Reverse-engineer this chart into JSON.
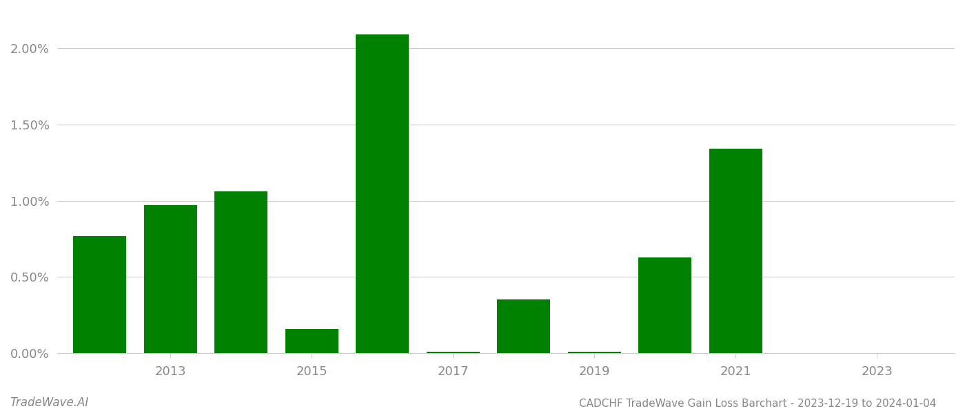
{
  "years": [
    2012,
    2013,
    2014,
    2015,
    2016,
    2017,
    2018,
    2019,
    2020,
    2021,
    2022,
    2023
  ],
  "values": [
    0.0077,
    0.0097,
    0.0106,
    0.0016,
    0.0209,
    0.0001,
    0.0035,
    0.0001,
    0.0063,
    0.0134,
    0.0,
    0.0
  ],
  "bar_color": "#008000",
  "title": "CADCHF TradeWave Gain Loss Barchart - 2023-12-19 to 2024-01-04",
  "watermark": "TradeWave.AI",
  "ytick_labels": [
    "0.00%",
    "0.50%",
    "1.00%",
    "1.50%",
    "2.00%"
  ],
  "ytick_values": [
    0.0,
    0.005,
    0.01,
    0.015,
    0.02
  ],
  "xtick_labels": [
    "2013",
    "2015",
    "2017",
    "2019",
    "2021",
    "2023"
  ],
  "xtick_values": [
    2013,
    2015,
    2017,
    2019,
    2021,
    2023
  ],
  "ylim": [
    0,
    0.0225
  ],
  "xlim": [
    2011.4,
    2024.1
  ],
  "background_color": "#ffffff",
  "grid_color": "#cccccc",
  "title_fontsize": 11,
  "axis_label_color": "#888888",
  "bar_width": 0.75,
  "tick_fontsize": 13
}
